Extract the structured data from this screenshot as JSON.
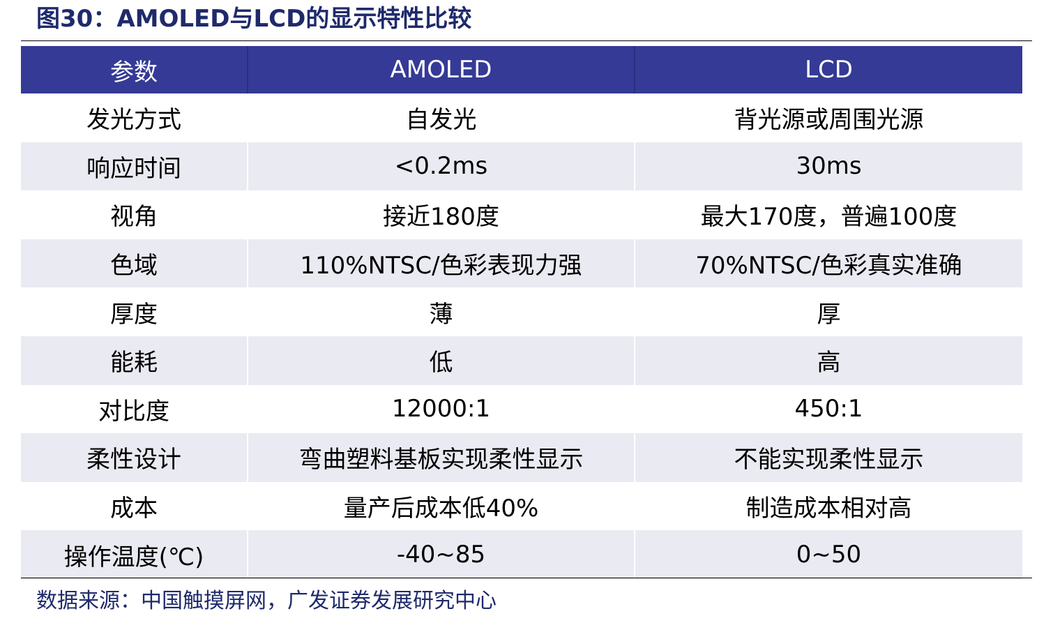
{
  "figure": {
    "title": "图30：AMOLED与LCD的显示特性比较"
  },
  "table": {
    "headers": [
      "参数",
      "AMOLED",
      "LCD"
    ],
    "rows": [
      [
        "发光方式",
        "自发光",
        "背光源或周围光源"
      ],
      [
        "响应时间",
        "<0.2ms",
        "30ms"
      ],
      [
        "视角",
        "接近180度",
        "最大170度，普遍100度"
      ],
      [
        "色域",
        "110%NTSC/色彩表现力强",
        "70%NTSC/色彩真实准确"
      ],
      [
        "厚度",
        "薄",
        "厚"
      ],
      [
        "能耗",
        "低",
        "高"
      ],
      [
        "对比度",
        "12000:1",
        "450:1"
      ],
      [
        "柔性设计",
        "弯曲塑料基板实现柔性显示",
        "不能实现柔性显示"
      ],
      [
        "成本",
        "量产后成本低40%",
        "制造成本相对高"
      ],
      [
        "操作温度(℃)",
        "-40~85",
        "0~50"
      ]
    ]
  },
  "source": "数据来源：中国触摸屏网，广发证券发展研究中心",
  "colors": {
    "header_bg": "#353a96",
    "header_text": "#ffffff",
    "stripe_bg": "#eaeaf2",
    "title_text": "#1f2a6b"
  }
}
